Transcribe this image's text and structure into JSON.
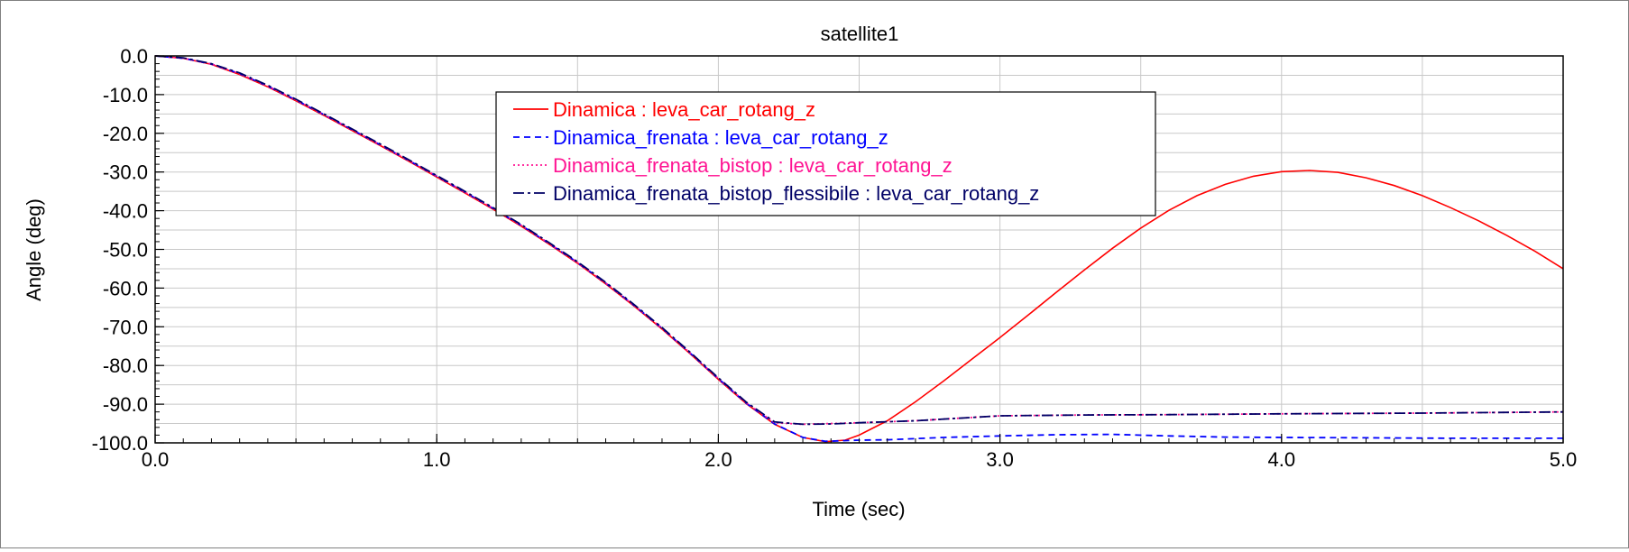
{
  "chart_data": {
    "type": "line",
    "title": "satellite1",
    "xlabel": "Time (sec)",
    "ylabel": "Angle (deg)",
    "xlim": [
      0.0,
      5.0
    ],
    "ylim": [
      -100.0,
      0.0
    ],
    "x_major_ticks": [
      0.0,
      1.0,
      2.0,
      3.0,
      4.0,
      5.0
    ],
    "x_tick_labels": [
      "0.0",
      "1.0",
      "2.0",
      "3.0",
      "4.0",
      "5.0"
    ],
    "y_major_ticks": [
      0.0,
      -10.0,
      -20.0,
      -30.0,
      -40.0,
      -50.0,
      -60.0,
      -70.0,
      -80.0,
      -90.0,
      -100.0
    ],
    "y_tick_labels": [
      "0.0",
      "-10.0",
      "-20.0",
      "-30.0",
      "-40.0",
      "-50.0",
      "-60.0",
      "-70.0",
      "-80.0",
      "-90.0",
      "-100.0"
    ],
    "grid": true,
    "legend_position": "top-center",
    "series": [
      {
        "name": "Dinamica : leva_car_rotang_z",
        "color": "#ff0000",
        "dash": "solid",
        "points": [
          [
            0,
            0
          ],
          [
            0.1,
            -0.6
          ],
          [
            0.2,
            -2.2
          ],
          [
            0.3,
            -4.8
          ],
          [
            0.4,
            -8.0
          ],
          [
            0.5,
            -11.6
          ],
          [
            0.6,
            -15.4
          ],
          [
            0.7,
            -19.3
          ],
          [
            0.8,
            -23.2
          ],
          [
            0.9,
            -27.2
          ],
          [
            1.0,
            -31.3
          ],
          [
            1.1,
            -35.4
          ],
          [
            1.2,
            -39.6
          ],
          [
            1.3,
            -44.0
          ],
          [
            1.4,
            -48.7
          ],
          [
            1.5,
            -53.6
          ],
          [
            1.6,
            -58.9
          ],
          [
            1.7,
            -64.6
          ],
          [
            1.8,
            -70.6
          ],
          [
            1.9,
            -77.0
          ],
          [
            2.0,
            -83.6
          ],
          [
            2.1,
            -89.9
          ],
          [
            2.2,
            -95.2
          ],
          [
            2.3,
            -98.6
          ],
          [
            2.38,
            -99.7
          ],
          [
            2.45,
            -99.3
          ],
          [
            2.5,
            -98.0
          ],
          [
            2.6,
            -94.3
          ],
          [
            2.7,
            -89.4
          ],
          [
            2.8,
            -84.0
          ],
          [
            2.9,
            -78.4
          ],
          [
            3.0,
            -72.8
          ],
          [
            3.1,
            -67.0
          ],
          [
            3.2,
            -61.1
          ],
          [
            3.3,
            -55.3
          ],
          [
            3.4,
            -49.7
          ],
          [
            3.5,
            -44.5
          ],
          [
            3.6,
            -39.9
          ],
          [
            3.7,
            -36.1
          ],
          [
            3.8,
            -33.2
          ],
          [
            3.9,
            -31.1
          ],
          [
            4.0,
            -29.9
          ],
          [
            4.1,
            -29.6
          ],
          [
            4.2,
            -30.1
          ],
          [
            4.3,
            -31.5
          ],
          [
            4.4,
            -33.5
          ],
          [
            4.5,
            -36.1
          ],
          [
            4.6,
            -39.2
          ],
          [
            4.7,
            -42.6
          ],
          [
            4.8,
            -46.4
          ],
          [
            4.9,
            -50.5
          ],
          [
            5.0,
            -55.0
          ]
        ]
      },
      {
        "name": "Dinamica_frenata : leva_car_rotang_z",
        "color": "#0000ff",
        "dash": "dashed",
        "points": [
          [
            0,
            0
          ],
          [
            0.1,
            -0.6
          ],
          [
            0.2,
            -2.1
          ],
          [
            0.3,
            -4.6
          ],
          [
            0.4,
            -7.8
          ],
          [
            0.5,
            -11.4
          ],
          [
            0.6,
            -15.2
          ],
          [
            0.7,
            -19.1
          ],
          [
            0.8,
            -23.0
          ],
          [
            0.9,
            -27.0
          ],
          [
            1.0,
            -31.1
          ],
          [
            1.1,
            -35.2
          ],
          [
            1.2,
            -39.4
          ],
          [
            1.3,
            -43.8
          ],
          [
            1.4,
            -48.5
          ],
          [
            1.5,
            -53.4
          ],
          [
            1.6,
            -58.7
          ],
          [
            1.7,
            -64.4
          ],
          [
            1.8,
            -70.4
          ],
          [
            1.9,
            -76.8
          ],
          [
            2.0,
            -83.4
          ],
          [
            2.1,
            -89.8
          ],
          [
            2.2,
            -95.1
          ],
          [
            2.3,
            -98.6
          ],
          [
            2.38,
            -99.6
          ],
          [
            2.5,
            -99.3
          ],
          [
            2.6,
            -99.2
          ],
          [
            2.8,
            -98.6
          ],
          [
            3.0,
            -98.2
          ],
          [
            3.2,
            -97.9
          ],
          [
            3.4,
            -97.8
          ],
          [
            3.6,
            -98.2
          ],
          [
            3.8,
            -98.5
          ],
          [
            4.0,
            -98.6
          ],
          [
            4.3,
            -98.7
          ],
          [
            4.6,
            -98.8
          ],
          [
            5.0,
            -98.8
          ]
        ]
      },
      {
        "name": "Dinamica_frenata_bistop : leva_car_rotang_z",
        "color": "#ff1493",
        "dash": "dotted",
        "points": [
          [
            0,
            0
          ],
          [
            0.1,
            -0.6
          ],
          [
            0.2,
            -2.1
          ],
          [
            0.3,
            -4.6
          ],
          [
            0.4,
            -7.8
          ],
          [
            0.5,
            -11.4
          ],
          [
            0.6,
            -15.2
          ],
          [
            0.7,
            -19.1
          ],
          [
            0.8,
            -23.0
          ],
          [
            0.9,
            -27.0
          ],
          [
            1.0,
            -31.1
          ],
          [
            1.1,
            -35.2
          ],
          [
            1.2,
            -39.4
          ],
          [
            1.3,
            -43.8
          ],
          [
            1.4,
            -48.5
          ],
          [
            1.5,
            -53.4
          ],
          [
            1.6,
            -58.7
          ],
          [
            1.7,
            -64.4
          ],
          [
            1.8,
            -70.4
          ],
          [
            1.9,
            -76.8
          ],
          [
            2.0,
            -83.4
          ],
          [
            2.1,
            -89.7
          ],
          [
            2.2,
            -94.8
          ],
          [
            2.3,
            -95.2
          ],
          [
            2.5,
            -94.8
          ],
          [
            2.7,
            -94.3
          ],
          [
            3.0,
            -93.0
          ],
          [
            3.3,
            -92.8
          ],
          [
            3.6,
            -92.7
          ],
          [
            4.0,
            -92.5
          ],
          [
            4.5,
            -92.3
          ],
          [
            5.0,
            -92.0
          ]
        ]
      },
      {
        "name": "Dinamica_frenata_bistop_flessibile : leva_car_rotang_z",
        "color": "#000066",
        "dash": "dashdot",
        "points": [
          [
            0,
            0
          ],
          [
            0.1,
            -0.5
          ],
          [
            0.2,
            -2.0
          ],
          [
            0.3,
            -4.4
          ],
          [
            0.4,
            -7.6
          ],
          [
            0.5,
            -11.2
          ],
          [
            0.6,
            -15.0
          ],
          [
            0.7,
            -18.9
          ],
          [
            0.8,
            -22.8
          ],
          [
            0.9,
            -26.8
          ],
          [
            1.0,
            -30.9
          ],
          [
            1.1,
            -35.0
          ],
          [
            1.2,
            -39.2
          ],
          [
            1.3,
            -43.6
          ],
          [
            1.4,
            -48.3
          ],
          [
            1.5,
            -53.2
          ],
          [
            1.6,
            -58.5
          ],
          [
            1.7,
            -64.2
          ],
          [
            1.8,
            -70.2
          ],
          [
            1.9,
            -76.6
          ],
          [
            2.0,
            -83.2
          ],
          [
            2.1,
            -89.5
          ],
          [
            2.2,
            -94.6
          ],
          [
            2.3,
            -95.2
          ],
          [
            2.4,
            -95.1
          ],
          [
            2.5,
            -94.8
          ],
          [
            2.7,
            -94.3
          ],
          [
            3.0,
            -93.0
          ],
          [
            3.3,
            -92.8
          ],
          [
            3.6,
            -92.7
          ],
          [
            4.0,
            -92.5
          ],
          [
            4.5,
            -92.3
          ],
          [
            5.0,
            -92.0
          ]
        ]
      }
    ]
  }
}
